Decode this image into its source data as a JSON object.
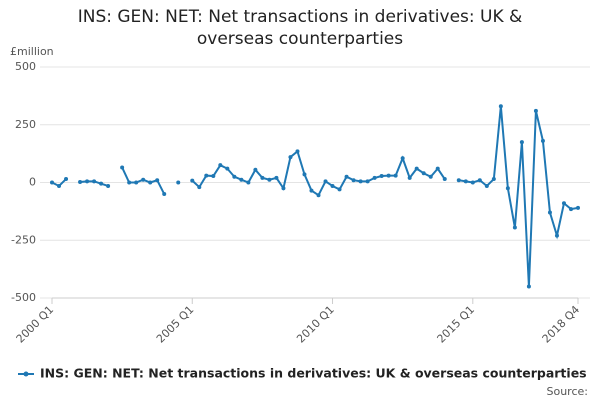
{
  "chart_data": {
    "type": "line",
    "title": "INS: GEN: NET: Net transactions in derivatives: UK & overseas counterparties",
    "ylabel": "£million",
    "source": "Source:",
    "categories": [
      "2000 Q1",
      null,
      null,
      null,
      null,
      null,
      null,
      null,
      null,
      null,
      null,
      null,
      null,
      null,
      null,
      null,
      null,
      null,
      null,
      null,
      "2005 Q1",
      null,
      null,
      null,
      null,
      null,
      null,
      null,
      null,
      null,
      null,
      null,
      null,
      null,
      null,
      null,
      null,
      null,
      null,
      null,
      "2010 Q1",
      null,
      null,
      null,
      null,
      null,
      null,
      null,
      null,
      null,
      null,
      null,
      null,
      null,
      null,
      null,
      null,
      null,
      null,
      null,
      "2015 Q1",
      null,
      null,
      null,
      null,
      null,
      null,
      null,
      null,
      null,
      null,
      null,
      null,
      null,
      null,
      "2018 Q4"
    ],
    "series": [
      {
        "name": "INS: GEN: NET: Net transactions in derivatives: UK & overseas counterparties",
        "color": "#1f78b4",
        "values": [
          0,
          -15,
          15,
          null,
          2,
          5,
          5,
          -5,
          -15,
          null,
          65,
          0,
          0,
          12,
          0,
          10,
          -50,
          null,
          0,
          null,
          8,
          -20,
          30,
          28,
          75,
          60,
          25,
          12,
          0,
          55,
          20,
          12,
          20,
          -25,
          110,
          135,
          35,
          -35,
          -55,
          5,
          -15,
          -30,
          25,
          10,
          5,
          5,
          20,
          28,
          30,
          30,
          105,
          20,
          60,
          40,
          25,
          60,
          15,
          null,
          10,
          5,
          0,
          10,
          -15,
          15,
          330,
          -25,
          -195,
          175,
          -450,
          310,
          180,
          -130,
          -230,
          -90,
          -115,
          -110
        ]
      }
    ],
    "ylim": [
      -500,
      500
    ],
    "yticks": [
      -500,
      -250,
      0,
      250,
      500
    ],
    "grid": true
  }
}
